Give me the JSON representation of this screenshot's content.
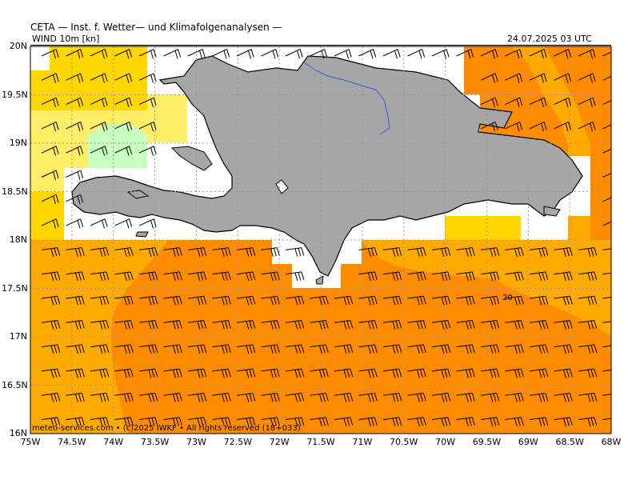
{
  "header": {
    "title": "CETA — Inst. f. Wetter— und Klimafolgenanalysen —",
    "variable": "WIND 10m [kn]",
    "valid_time": "24.07.2025 03 UTC"
  },
  "axes": {
    "lat_ticks": [
      "20N",
      "19.5N",
      "19N",
      "18.5N",
      "18N",
      "17.5N",
      "17N",
      "16.5N",
      "16N"
    ],
    "lon_ticks": [
      "75W",
      "74.5W",
      "74W",
      "73.5W",
      "73W",
      "72.5W",
      "72W",
      "71.5W",
      "71W",
      "70.5W",
      "70W",
      "69.5W",
      "69W",
      "68.5W",
      "68W"
    ],
    "lat_range": [
      16,
      20
    ],
    "lon_range": [
      -75,
      -68
    ]
  },
  "contour_label": "20",
  "footer": "meteo-services.com • (c)2025 IWKF • All rights reserved (18+033)",
  "colors": {
    "land": "#a6a6a6",
    "river": "#3b5bdb",
    "wind_5_10kn": "#ffee66",
    "wind_10_15kn": "#ffd700",
    "wind_15_20kn": "#ffaa00",
    "wind_20_25kn": "#ff8c00",
    "wind_0_5kn": "#c8ffc0"
  }
}
